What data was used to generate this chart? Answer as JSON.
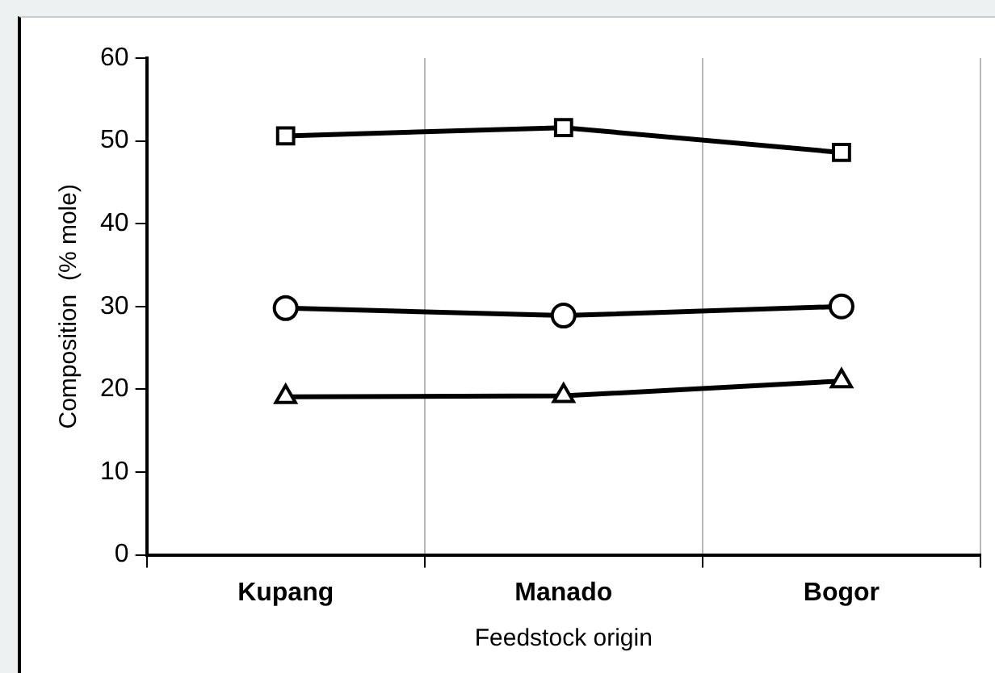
{
  "chart_data": {
    "type": "line",
    "xlabel": "Feedstock origin",
    "ylabel": "Composition  (% mole)",
    "categories": [
      "Kupang",
      "Manado",
      "Bogor"
    ],
    "series": [
      {
        "color": "#000000",
        "marker": "square",
        "values": [
          50.6,
          51.6,
          48.6
        ]
      },
      {
        "color": "#000000",
        "marker": "circle",
        "values": [
          29.8,
          28.9,
          30.0
        ]
      },
      {
        "color": "#000000",
        "marker": "triangle",
        "values": [
          19.1,
          19.2,
          21.0
        ]
      }
    ],
    "ylim": [
      0,
      60
    ],
    "yticks": [
      0,
      10,
      20,
      30,
      40,
      50,
      60
    ],
    "grid": "x",
    "legend": false,
    "line_style": "solid"
  }
}
